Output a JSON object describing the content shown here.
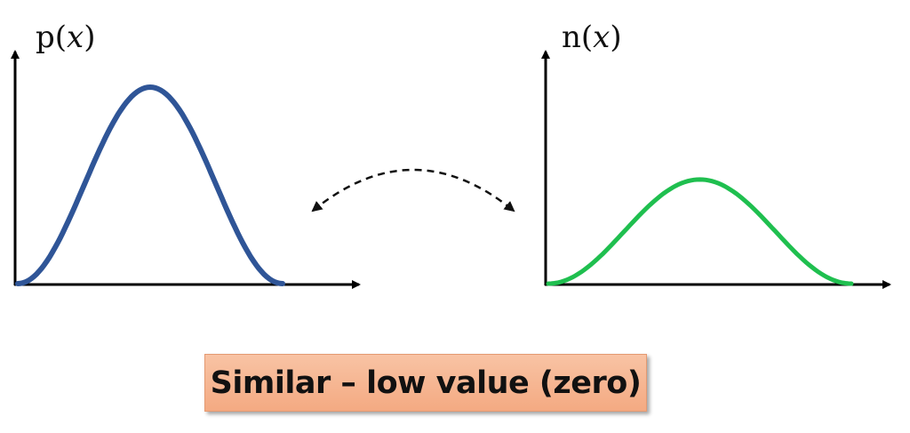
{
  "left_plot": {
    "label_func": "p",
    "label_var": "x",
    "curve_color": "#2f5597",
    "peak_relative": 1.0
  },
  "right_plot": {
    "label_func": "n",
    "label_var": "x",
    "curve_color": "#1fbf4f",
    "peak_relative": 0.53
  },
  "connector": {
    "style": "dashed",
    "arrowheads": "both",
    "color": "#111111"
  },
  "caption": {
    "text": "Similar – low value (zero)",
    "background": "#f6b690"
  }
}
